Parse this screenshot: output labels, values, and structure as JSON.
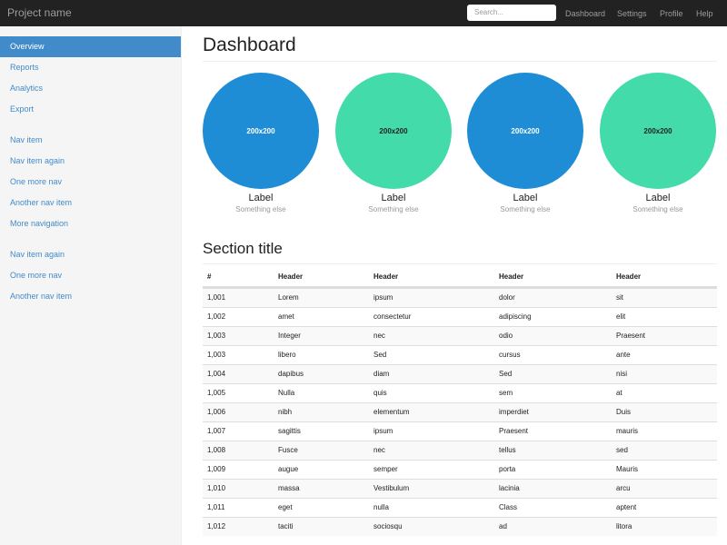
{
  "navbar": {
    "brand": "Project name",
    "search_placeholder": "Search...",
    "links": [
      "Dashboard",
      "Settings",
      "Profile",
      "Help"
    ]
  },
  "sidebar": {
    "groups": [
      [
        "Overview",
        "Reports",
        "Analytics",
        "Export"
      ],
      [
        "Nav item",
        "Nav item again",
        "One more nav",
        "Another nav item",
        "More navigation"
      ],
      [
        "Nav item again",
        "One more nav",
        "Another nav item"
      ]
    ]
  },
  "main": {
    "title": "Dashboard",
    "placeholders": [
      {
        "image_text": "200x200",
        "label": "Label",
        "caption": "Something else"
      },
      {
        "image_text": "200x200",
        "label": "Label",
        "caption": "Something else"
      },
      {
        "image_text": "200x200",
        "label": "Label",
        "caption": "Something else"
      },
      {
        "image_text": "200x200",
        "label": "Label",
        "caption": "Something else"
      }
    ],
    "section_title": "Section title",
    "table": {
      "headers": [
        "#",
        "Header",
        "Header",
        "Header",
        "Header"
      ],
      "rows": [
        [
          "1,001",
          "Lorem",
          "ipsum",
          "dolor",
          "sit"
        ],
        [
          "1,002",
          "amet",
          "consectetur",
          "adipiscing",
          "elit"
        ],
        [
          "1,003",
          "Integer",
          "nec",
          "odio",
          "Praesent"
        ],
        [
          "1,003",
          "libero",
          "Sed",
          "cursus",
          "ante"
        ],
        [
          "1,004",
          "dapibus",
          "diam",
          "Sed",
          "nisi"
        ],
        [
          "1,005",
          "Nulla",
          "quis",
          "sem",
          "at"
        ],
        [
          "1,006",
          "nibh",
          "elementum",
          "imperdiet",
          "Duis"
        ],
        [
          "1,007",
          "sagittis",
          "ipsum",
          "Praesent",
          "mauris"
        ],
        [
          "1,008",
          "Fusce",
          "nec",
          "tellus",
          "sed"
        ],
        [
          "1,009",
          "augue",
          "semper",
          "porta",
          "Mauris"
        ],
        [
          "1,010",
          "massa",
          "Vestibulum",
          "lacinia",
          "arcu"
        ],
        [
          "1,011",
          "eget",
          "nulla",
          "Class",
          "aptent"
        ],
        [
          "1,012",
          "taciti",
          "sociosqu",
          "ad",
          "litora"
        ]
      ]
    }
  }
}
